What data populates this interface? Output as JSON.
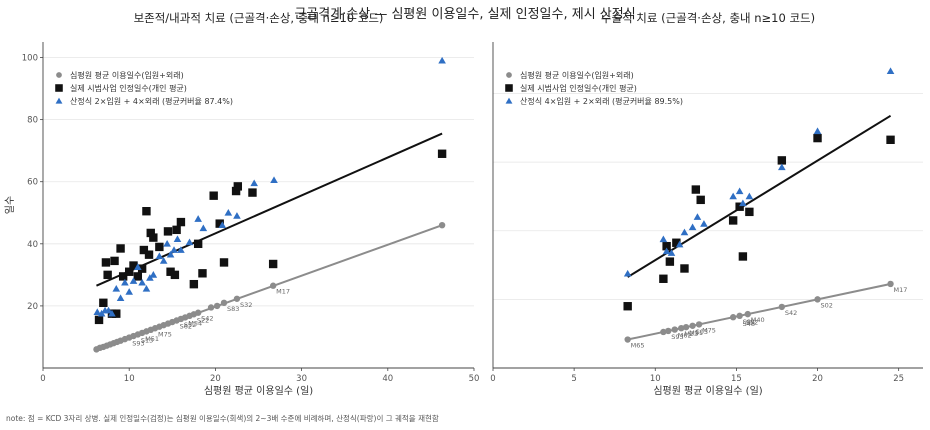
{
  "suptitle": "근골격계·손상 — 심평원 이용일수, 실제 인정일수, 제시 산정식",
  "note": "note: 점 = KCD 3자리 상병. 실제 인정일수(검정)는 심평원 이용일수(회색)의 2~3배 수준에 비례하며, 산정식(파랑)이 그 궤적을 재현함",
  "colors": {
    "hira": "#8c8c8c",
    "actual": "#111111",
    "formula": "#2f6fc4",
    "grid": "#e6e6e6",
    "axis": "#444444"
  },
  "chart_data": [
    {
      "type": "scatter",
      "title": "보존적/내과적 치료 (근골격·손상, 충내 n≥10 코드)",
      "xlabel": "심평원 평균 이용일수 (일)",
      "ylabel": "일수",
      "xlim": [
        0,
        50
      ],
      "ylim": [
        0,
        105
      ],
      "xticks": [
        0,
        10,
        20,
        30,
        40,
        50
      ],
      "yticks": [
        20,
        40,
        60,
        80,
        100
      ],
      "grid": "y",
      "legend_position": "top-left",
      "series": [
        {
          "name": "심평원 평균 이용일수(입원+외래)",
          "marker": "circle",
          "points": [
            [
              6.2,
              6
            ],
            [
              6.6,
              6.5
            ],
            [
              7.0,
              6.8
            ],
            [
              7.4,
              7.2
            ],
            [
              7.8,
              7.6
            ],
            [
              8.2,
              8
            ],
            [
              8.6,
              8.4
            ],
            [
              9.0,
              8.8
            ],
            [
              9.5,
              9.3
            ],
            [
              10.0,
              9.8
            ],
            [
              10.5,
              10.3
            ],
            [
              11.0,
              10.8
            ],
            [
              11.5,
              11.3
            ],
            [
              12.0,
              11.8
            ],
            [
              12.5,
              12.3
            ],
            [
              13.0,
              12.8
            ],
            [
              13.5,
              13.3
            ],
            [
              14.0,
              13.8
            ],
            [
              14.5,
              14.3
            ],
            [
              15.0,
              14.8
            ],
            [
              15.5,
              15.3
            ],
            [
              16.0,
              15.8
            ],
            [
              16.5,
              16.3
            ],
            [
              17.0,
              16.8
            ],
            [
              17.5,
              17.3
            ],
            [
              18.0,
              17.8
            ],
            [
              19.5,
              19.5
            ],
            [
              20.2,
              20
            ],
            [
              21.0,
              21
            ],
            [
              22.5,
              22.3
            ],
            [
              26.7,
              26.5
            ],
            [
              46.3,
              46
            ]
          ],
          "fit": [
            [
              6.2,
              6
            ],
            [
              46.3,
              46
            ]
          ]
        },
        {
          "name": "실제 시범사업 인정일수(개인 평균)",
          "marker": "square",
          "points": [
            [
              6.5,
              15.5
            ],
            [
              7.0,
              21
            ],
            [
              7.3,
              34
            ],
            [
              7.5,
              30
            ],
            [
              8.0,
              17.5
            ],
            [
              8.3,
              34.5
            ],
            [
              8.5,
              17.5
            ],
            [
              9.0,
              38.5
            ],
            [
              9.3,
              29.5
            ],
            [
              10.0,
              31
            ],
            [
              10.5,
              33
            ],
            [
              11.0,
              29.5
            ],
            [
              11.5,
              32
            ],
            [
              11.7,
              38
            ],
            [
              12.0,
              50.5
            ],
            [
              12.3,
              36.5
            ],
            [
              12.5,
              43.5
            ],
            [
              12.8,
              42
            ],
            [
              13.5,
              39
            ],
            [
              14.5,
              44
            ],
            [
              14.8,
              31
            ],
            [
              15.3,
              30
            ],
            [
              15.5,
              44.5
            ],
            [
              16.0,
              47
            ],
            [
              17.5,
              27
            ],
            [
              18.0,
              40
            ],
            [
              18.5,
              30.5
            ],
            [
              19.8,
              55.5
            ],
            [
              20.5,
              46.5
            ],
            [
              21.0,
              34
            ],
            [
              22.4,
              57
            ],
            [
              22.6,
              58.5
            ],
            [
              24.3,
              56.5
            ],
            [
              26.7,
              33.5
            ],
            [
              46.3,
              69
            ]
          ],
          "fit": [
            [
              6.2,
              26.5
            ],
            [
              46.3,
              75.5
            ]
          ]
        },
        {
          "name": "산정식 2×입원 + 4×외래 (평균커버율 87.4%)",
          "marker": "triangle",
          "points": [
            [
              6.3,
              18
            ],
            [
              6.8,
              17.5
            ],
            [
              7.2,
              18.5
            ],
            [
              7.6,
              18.5
            ],
            [
              8.0,
              17.5
            ],
            [
              8.5,
              25.5
            ],
            [
              9.0,
              22.5
            ],
            [
              9.5,
              27.5
            ],
            [
              10.0,
              24.5
            ],
            [
              10.5,
              28
            ],
            [
              11.0,
              32.5
            ],
            [
              11.5,
              27.5
            ],
            [
              12.0,
              25.5
            ],
            [
              12.4,
              29
            ],
            [
              12.8,
              30
            ],
            [
              13.5,
              36
            ],
            [
              14.0,
              34.5
            ],
            [
              14.4,
              40
            ],
            [
              14.8,
              36.5
            ],
            [
              15.2,
              38
            ],
            [
              15.6,
              41.5
            ],
            [
              16.0,
              38
            ],
            [
              17.0,
              40.5
            ],
            [
              18.0,
              48
            ],
            [
              18.6,
              45
            ],
            [
              20.8,
              46
            ],
            [
              21.5,
              50
            ],
            [
              22.5,
              49
            ],
            [
              24.5,
              59.5
            ],
            [
              26.8,
              60.5
            ],
            [
              46.3,
              99
            ]
          ]
        }
      ],
      "annotations": [
        {
          "text": "M17",
          "x": 26.7,
          "y": 26.5
        },
        {
          "text": "S83",
          "x": 21.0,
          "y": 21
        },
        {
          "text": "S32",
          "x": 22.5,
          "y": 22.3
        },
        {
          "text": "S22",
          "x": 17.5,
          "y": 17.3
        },
        {
          "text": "S42",
          "x": 18.0,
          "y": 17.8
        },
        {
          "text": "S62",
          "x": 15.5,
          "y": 15.3
        },
        {
          "text": "S52",
          "x": 16.0,
          "y": 15.8
        },
        {
          "text": "M54",
          "x": 16.5,
          "y": 16.3
        },
        {
          "text": "S13",
          "x": 11.0,
          "y": 10.8
        },
        {
          "text": "M75",
          "x": 13.0,
          "y": 12.8
        },
        {
          "text": "M51",
          "x": 11.5,
          "y": 11.3
        },
        {
          "text": "S93",
          "x": 10.0,
          "y": 9.8
        }
      ]
    },
    {
      "type": "scatter",
      "title": "수술적 치료 (근골격·손상, 충내 n≥10 코드)",
      "xlabel": "심평원 평균 이용일수 (일)",
      "ylabel": "",
      "xlim": [
        0,
        26.5
      ],
      "ylim": [
        0,
        95
      ],
      "xticks": [
        0,
        5,
        10,
        15,
        20,
        25
      ],
      "yticks": [],
      "grid": "y",
      "legend_position": "top-left",
      "series": [
        {
          "name": "심평원 평균 이용일수(입원+외래)",
          "marker": "circle",
          "points": [
            [
              8.3,
              8.3
            ],
            [
              10.5,
              10.5
            ],
            [
              10.8,
              10.8
            ],
            [
              11.2,
              11.2
            ],
            [
              11.6,
              11.6
            ],
            [
              11.9,
              11.9
            ],
            [
              12.3,
              12.3
            ],
            [
              12.7,
              12.7
            ],
            [
              14.8,
              14.8
            ],
            [
              15.2,
              15.2
            ],
            [
              15.7,
              15.7
            ],
            [
              17.8,
              17.8
            ],
            [
              20.0,
              20
            ],
            [
              24.5,
              24.5
            ]
          ],
          "fit": [
            [
              8.3,
              8.3
            ],
            [
              24.5,
              24.5
            ]
          ]
        },
        {
          "name": "실제 시범사업 인정일수(개인 평균)",
          "marker": "square",
          "points": [
            [
              8.3,
              18
            ],
            [
              10.5,
              26
            ],
            [
              10.7,
              35.5
            ],
            [
              10.9,
              31
            ],
            [
              11.3,
              36.5
            ],
            [
              11.8,
              29
            ],
            [
              12.5,
              52
            ],
            [
              12.8,
              49
            ],
            [
              14.8,
              43
            ],
            [
              15.2,
              47
            ],
            [
              15.4,
              32.5
            ],
            [
              15.8,
              45.5
            ],
            [
              17.8,
              60.5
            ],
            [
              20.0,
              67
            ],
            [
              24.5,
              66.5
            ]
          ],
          "fit": [
            [
              8.3,
              26.5
            ],
            [
              24.5,
              73.5
            ]
          ]
        },
        {
          "name": "산정식 4×입원 + 2×외래 (평균커버율 89.5%)",
          "marker": "triangle",
          "points": [
            [
              8.3,
              27.5
            ],
            [
              10.5,
              37.5
            ],
            [
              10.7,
              34
            ],
            [
              11.0,
              33.5
            ],
            [
              11.5,
              36
            ],
            [
              11.8,
              39.5
            ],
            [
              12.3,
              41
            ],
            [
              12.6,
              44
            ],
            [
              13.0,
              42
            ],
            [
              14.8,
              50
            ],
            [
              15.2,
              51.5
            ],
            [
              15.4,
              48
            ],
            [
              15.8,
              50
            ],
            [
              17.8,
              58.5
            ],
            [
              20.0,
              69
            ],
            [
              24.5,
              86.5
            ]
          ]
        }
      ],
      "annotations": [
        {
          "text": "M17",
          "x": 24.5,
          "y": 24.5
        },
        {
          "text": "S02",
          "x": 20.0,
          "y": 20
        },
        {
          "text": "S42",
          "x": 17.8,
          "y": 17.8
        },
        {
          "text": "M40",
          "x": 15.7,
          "y": 15.7
        },
        {
          "text": "S82",
          "x": 15.2,
          "y": 15.2
        },
        {
          "text": "S52",
          "x": 15.4,
          "y": 15.0
        },
        {
          "text": "S48",
          "x": 15.2,
          "y": 14.6
        },
        {
          "text": "M75",
          "x": 12.7,
          "y": 12.7
        },
        {
          "text": "S03",
          "x": 12.3,
          "y": 12.3
        },
        {
          "text": "M51",
          "x": 11.9,
          "y": 11.9
        },
        {
          "text": "M62",
          "x": 11.2,
          "y": 11.2
        },
        {
          "text": "M23",
          "x": 11.6,
          "y": 11.6
        },
        {
          "text": "S93",
          "x": 10.8,
          "y": 10.8
        },
        {
          "text": "M65",
          "x": 8.3,
          "y": 8.3
        }
      ]
    }
  ]
}
